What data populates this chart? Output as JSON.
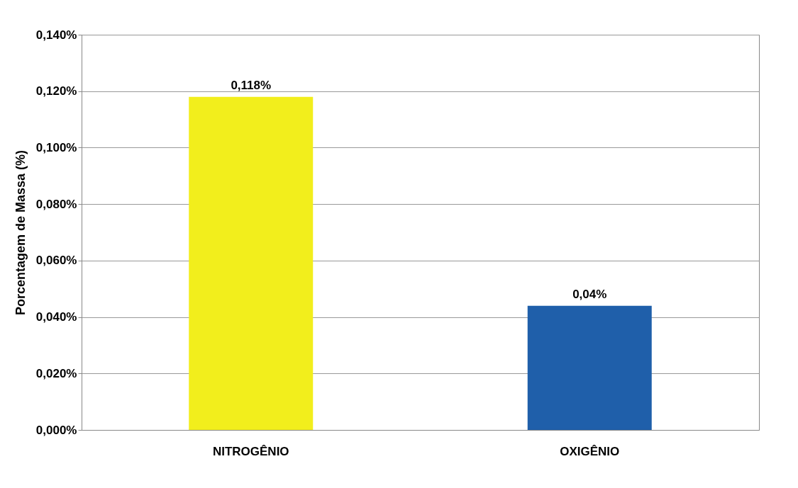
{
  "chart_data": {
    "type": "bar",
    "ylabel": "Porcentagem de Massa  (%)",
    "categories": [
      "NITROGÊNIO",
      "OXIGÊNIO"
    ],
    "values": [
      0.118,
      0.044
    ],
    "colors": [
      "#f2ee1c",
      "#1f5faa"
    ],
    "value_labels": [
      "0,118%",
      "0,04%"
    ],
    "ylim": [
      0,
      0.14
    ],
    "yticks": [
      {
        "value": 0,
        "label": "0,000%"
      },
      {
        "value": 0.02,
        "label": "0,020%"
      },
      {
        "value": 0.04,
        "label": "0,040%"
      },
      {
        "value": 0.06,
        "label": "0,060%"
      },
      {
        "value": 0.08,
        "label": "0,080%"
      },
      {
        "value": 0.1,
        "label": "0,100%"
      },
      {
        "value": 0.12,
        "label": "0,120%"
      },
      {
        "value": 0.14,
        "label": "0,140%"
      }
    ],
    "grid": "y"
  }
}
